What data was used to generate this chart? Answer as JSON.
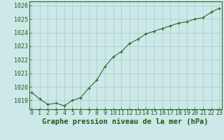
{
  "title": "Graphe pression niveau de la mer (hPa)",
  "x_values": [
    0,
    1,
    2,
    3,
    4,
    5,
    6,
    7,
    8,
    9,
    10,
    11,
    12,
    13,
    14,
    15,
    16,
    17,
    18,
    19,
    20,
    21,
    22,
    23
  ],
  "y_values": [
    1019.6,
    1019.1,
    1018.7,
    1018.8,
    1018.6,
    1019.0,
    1019.2,
    1019.9,
    1020.5,
    1021.5,
    1022.2,
    1022.6,
    1023.2,
    1023.5,
    1023.9,
    1024.1,
    1024.3,
    1024.5,
    1024.7,
    1024.8,
    1025.0,
    1025.1,
    1025.5,
    1025.8
  ],
  "ylim": [
    1018.35,
    1026.3
  ],
  "yticks": [
    1019,
    1020,
    1021,
    1022,
    1023,
    1024,
    1025,
    1026
  ],
  "xticks": [
    0,
    1,
    2,
    3,
    4,
    5,
    6,
    7,
    8,
    9,
    10,
    11,
    12,
    13,
    14,
    15,
    16,
    17,
    18,
    19,
    20,
    21,
    22,
    23
  ],
  "xlim": [
    -0.3,
    23.3
  ],
  "line_color": "#2a6b2a",
  "marker_color": "#2a6b2a",
  "bg_color": "#cce8e8",
  "grid_color": "#aacaca",
  "tick_label_color": "#1a5c1a",
  "title_color": "#1a5c1a",
  "title_fontsize": 7.5,
  "tick_fontsize": 6.0,
  "title_fontweight": "bold"
}
